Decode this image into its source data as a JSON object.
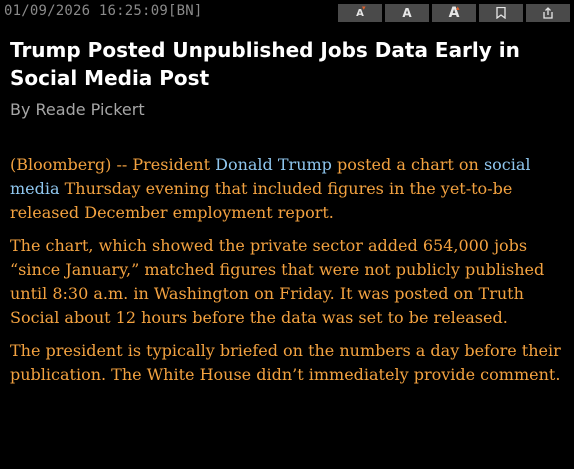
{
  "header": {
    "timestamp": "01/09/2026 16:25:09",
    "source": "[BN]"
  },
  "toolbar": {
    "decrease_font_label": "A",
    "default_font_label": "A",
    "increase_font_label": "A",
    "decrease_marker": "▾",
    "increase_marker": "▴"
  },
  "story": {
    "headline": "Trump Posted Unpublished Jobs Data Early in Social Media Post",
    "byline": "By Reade Pickert",
    "paragraphs": {
      "p1": {
        "pre": "(Bloomberg) -- President ",
        "link1": "Donald Trump",
        "mid": " posted a chart on ",
        "link2": "social media",
        "post": " Thursday evening that included figures in the yet-to-be released December employment report."
      },
      "p2": "The chart, which showed the private sector added 654,000 jobs “since January,” matched figures that were not publicly published until 8:30 a.m. in Washington on Friday. It was posted on Truth Social about 12 hours before the data was set to be released.",
      "p3": "The president is typically briefed on the numbers a day before their publication. The White House didn’t immediately provide comment."
    }
  },
  "colors": {
    "background": "#000000",
    "body_text": "#f3a240",
    "link": "#8fc6ee",
    "headline": "#ffffff",
    "byline": "#a6a6a6"
  }
}
